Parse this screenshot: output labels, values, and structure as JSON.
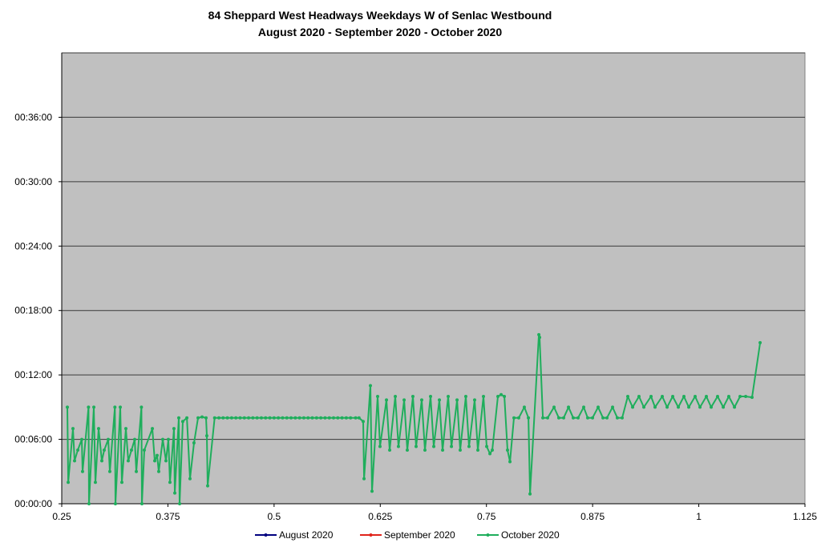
{
  "chart_data": {
    "type": "line",
    "title": "84 Sheppard West Headways Weekdays W of Senlac Westbound",
    "subtitle": "August 2020 - September 2020 - October 2020",
    "xlabel": "",
    "ylabel": "",
    "xlim": [
      0.25,
      1.125
    ],
    "ylim": [
      "00:00:00",
      "00:42:00"
    ],
    "x_ticks": [
      "0.25",
      "0.375",
      "0.5",
      "0.625",
      "0.75",
      "0.875",
      "1",
      "1.125"
    ],
    "y_ticks": [
      "00:00:00",
      "00:06:00",
      "00:12:00",
      "00:18:00",
      "00:24:00",
      "00:30:00",
      "00:36:00"
    ],
    "grid": "horizontal",
    "legend_position": "bottom",
    "colors": {
      "plot_background": "#c0c0c0",
      "gridline": "#3a3a3a"
    },
    "series": [
      {
        "name": "August 2020",
        "color": "#00007f",
        "points": []
      },
      {
        "name": "September 2020",
        "color": "#e0241b",
        "points": []
      },
      {
        "name": "October 2020",
        "color": "#1fae5c",
        "points": [
          [
            0.2566,
            "00:09:00"
          ],
          [
            0.2576,
            "00:02:00"
          ],
          [
            0.2632,
            "00:07:00"
          ],
          [
            0.2651,
            "00:04:00"
          ],
          [
            0.2689,
            "00:05:00"
          ],
          [
            0.2736,
            "00:06:00"
          ],
          [
            0.2745,
            "00:03:00"
          ],
          [
            0.2815,
            "00:09:00"
          ],
          [
            0.2821,
            "00:00:00"
          ],
          [
            0.2878,
            "00:09:00"
          ],
          [
            0.2896,
            "00:02:00"
          ],
          [
            0.2934,
            "00:07:00"
          ],
          [
            0.2972,
            "00:04:00"
          ],
          [
            0.3,
            "00:05:00"
          ],
          [
            0.3047,
            "00:06:00"
          ],
          [
            0.3066,
            "00:03:00"
          ],
          [
            0.3126,
            "00:09:00"
          ],
          [
            0.3132,
            "00:00:00"
          ],
          [
            0.3189,
            "00:09:00"
          ],
          [
            0.3208,
            "00:02:00"
          ],
          [
            0.3255,
            "00:07:00"
          ],
          [
            0.3283,
            "00:04:00"
          ],
          [
            0.3321,
            "00:05:00"
          ],
          [
            0.3359,
            "00:06:00"
          ],
          [
            0.3378,
            "00:03:00"
          ],
          [
            0.3438,
            "00:09:00"
          ],
          [
            0.3444,
            "00:00:00"
          ],
          [
            0.3472,
            "00:05:00"
          ],
          [
            0.3567,
            "00:07:00"
          ],
          [
            0.3595,
            "00:04:00"
          ],
          [
            0.3623,
            "00:04:30"
          ],
          [
            0.3642,
            "00:03:00"
          ],
          [
            0.3689,
            "00:06:00"
          ],
          [
            0.3727,
            "00:04:00"
          ],
          [
            0.3755,
            "00:06:00"
          ],
          [
            0.3774,
            "00:02:00"
          ],
          [
            0.3821,
            "00:07:00"
          ],
          [
            0.3831,
            "00:01:00"
          ],
          [
            0.3878,
            "00:08:00"
          ],
          [
            0.3888,
            "00:00:00"
          ],
          [
            0.3925,
            "00:07:40"
          ],
          [
            0.3973,
            "00:08:00"
          ],
          [
            0.401,
            "00:02:20"
          ],
          [
            0.4057,
            "00:05:40"
          ],
          [
            0.4105,
            "00:08:00"
          ],
          [
            0.4152,
            "00:08:05"
          ],
          [
            0.4199,
            "00:08:00"
          ],
          [
            0.4208,
            "00:06:20"
          ],
          [
            0.4218,
            "00:01:40"
          ],
          [
            0.43,
            "00:08:00"
          ],
          [
            0.435,
            "00:08:00"
          ],
          [
            0.44,
            "00:08:00"
          ],
          [
            0.445,
            "00:08:00"
          ],
          [
            0.45,
            "00:08:00"
          ],
          [
            0.455,
            "00:08:00"
          ],
          [
            0.46,
            "00:08:00"
          ],
          [
            0.465,
            "00:08:00"
          ],
          [
            0.47,
            "00:08:00"
          ],
          [
            0.475,
            "00:08:00"
          ],
          [
            0.48,
            "00:08:00"
          ],
          [
            0.485,
            "00:08:00"
          ],
          [
            0.49,
            "00:08:00"
          ],
          [
            0.495,
            "00:08:00"
          ],
          [
            0.5,
            "00:08:00"
          ],
          [
            0.505,
            "00:08:00"
          ],
          [
            0.51,
            "00:08:00"
          ],
          [
            0.515,
            "00:08:00"
          ],
          [
            0.52,
            "00:08:00"
          ],
          [
            0.525,
            "00:08:00"
          ],
          [
            0.53,
            "00:08:00"
          ],
          [
            0.535,
            "00:08:00"
          ],
          [
            0.54,
            "00:08:00"
          ],
          [
            0.545,
            "00:08:00"
          ],
          [
            0.55,
            "00:08:00"
          ],
          [
            0.555,
            "00:08:00"
          ],
          [
            0.56,
            "00:08:00"
          ],
          [
            0.565,
            "00:08:00"
          ],
          [
            0.57,
            "00:08:00"
          ],
          [
            0.575,
            "00:08:00"
          ],
          [
            0.58,
            "00:08:00"
          ],
          [
            0.585,
            "00:08:00"
          ],
          [
            0.59,
            "00:08:00"
          ],
          [
            0.596,
            "00:08:00"
          ],
          [
            0.6,
            "00:08:00"
          ],
          [
            0.6049,
            "00:07:40"
          ],
          [
            0.6059,
            "00:02:20"
          ],
          [
            0.6134,
            "00:11:00"
          ],
          [
            0.6153,
            "00:01:10"
          ],
          [
            0.6219,
            "00:10:00"
          ],
          [
            0.6247,
            "00:05:20"
          ],
          [
            0.6323,
            "00:09:40"
          ],
          [
            0.6361,
            "00:05:00"
          ],
          [
            0.6427,
            "00:10:00"
          ],
          [
            0.6464,
            "00:05:20"
          ],
          [
            0.6531,
            "00:09:40"
          ],
          [
            0.6568,
            "00:05:00"
          ],
          [
            0.6634,
            "00:10:00"
          ],
          [
            0.6672,
            "00:05:20"
          ],
          [
            0.6738,
            "00:09:40"
          ],
          [
            0.6776,
            "00:05:00"
          ],
          [
            0.6842,
            "00:10:00"
          ],
          [
            0.688,
            "00:05:20"
          ],
          [
            0.6946,
            "00:09:40"
          ],
          [
            0.6984,
            "00:05:00"
          ],
          [
            0.705,
            "00:10:00"
          ],
          [
            0.7088,
            "00:05:20"
          ],
          [
            0.7154,
            "00:09:40"
          ],
          [
            0.7191,
            "00:05:00"
          ],
          [
            0.7257,
            "00:10:00"
          ],
          [
            0.7295,
            "00:05:20"
          ],
          [
            0.7361,
            "00:09:40"
          ],
          [
            0.7399,
            "00:05:00"
          ],
          [
            0.7465,
            "00:10:00"
          ],
          [
            0.7503,
            "00:05:20"
          ],
          [
            0.7541,
            "00:04:40"
          ],
          [
            0.7569,
            "00:05:00"
          ],
          [
            0.7635,
            "00:10:00"
          ],
          [
            0.7673,
            "00:10:10"
          ],
          [
            0.7711,
            "00:10:00"
          ],
          [
            0.7748,
            "00:05:00"
          ],
          [
            0.7777,
            "00:03:55"
          ],
          [
            0.7824,
            "00:08:00"
          ],
          [
            0.788,
            "00:08:00"
          ],
          [
            0.7946,
            "00:09:00"
          ],
          [
            0.7994,
            "00:08:00"
          ],
          [
            0.8013,
            "00:00:55"
          ],
          [
            0.8117,
            "00:15:45"
          ],
          [
            0.8126,
            "00:15:30"
          ],
          [
            0.8164,
            "00:08:00"
          ],
          [
            0.822,
            "00:08:00"
          ],
          [
            0.8296,
            "00:09:00"
          ],
          [
            0.8352,
            "00:08:00"
          ],
          [
            0.8409,
            "00:08:00"
          ],
          [
            0.8466,
            "00:09:00"
          ],
          [
            0.8522,
            "00:08:00"
          ],
          [
            0.8579,
            "00:08:00"
          ],
          [
            0.8645,
            "00:09:00"
          ],
          [
            0.8692,
            "00:08:00"
          ],
          [
            0.8749,
            "00:08:00"
          ],
          [
            0.8815,
            "00:09:00"
          ],
          [
            0.8872,
            "00:08:00"
          ],
          [
            0.8919,
            "00:08:00"
          ],
          [
            0.8985,
            "00:09:00"
          ],
          [
            0.9041,
            "00:08:00"
          ],
          [
            0.9098,
            "00:08:00"
          ],
          [
            0.9164,
            "00:10:00"
          ],
          [
            0.9221,
            "00:09:00"
          ],
          [
            0.9296,
            "00:10:00"
          ],
          [
            0.9353,
            "00:09:00"
          ],
          [
            0.9438,
            "00:10:00"
          ],
          [
            0.9485,
            "00:09:00"
          ],
          [
            0.957,
            "00:10:00"
          ],
          [
            0.9627,
            "00:09:00"
          ],
          [
            0.9693,
            "00:10:00"
          ],
          [
            0.9759,
            "00:09:00"
          ],
          [
            0.9825,
            "00:10:00"
          ],
          [
            0.9882,
            "00:09:00"
          ],
          [
            0.9957,
            "00:10:00"
          ],
          [
            1.0014,
            "00:09:00"
          ],
          [
            1.0089,
            "00:10:00"
          ],
          [
            1.0146,
            "00:09:00"
          ],
          [
            1.0221,
            "00:10:00"
          ],
          [
            1.0288,
            "00:09:00"
          ],
          [
            1.0353,
            "00:10:00"
          ],
          [
            1.042,
            "00:09:00"
          ],
          [
            1.0486,
            "00:10:00"
          ],
          [
            1.0552,
            "00:10:00"
          ],
          [
            1.0627,
            "00:09:55"
          ],
          [
            1.0722,
            "00:15:00"
          ]
        ]
      }
    ]
  }
}
